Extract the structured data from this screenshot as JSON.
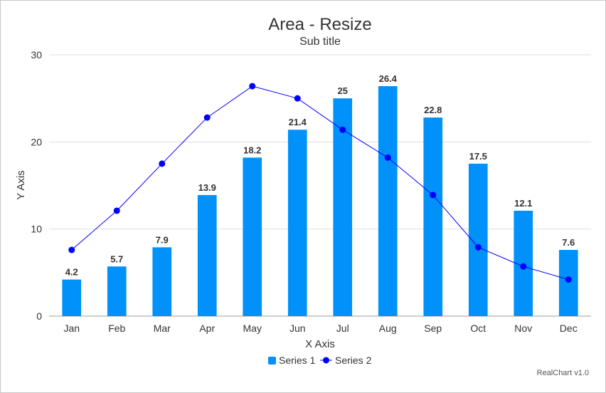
{
  "chart_data": {
    "type": "bar",
    "title": "Area - Resize",
    "subtitle": "Sub title",
    "xlabel": "X Axis",
    "ylabel": "Y Axis",
    "categories": [
      "Jan",
      "Feb",
      "Mar",
      "Apr",
      "May",
      "Jun",
      "Jul",
      "Aug",
      "Sep",
      "Oct",
      "Nov",
      "Dec"
    ],
    "ylim": [
      0,
      30
    ],
    "yticks": [
      0,
      10,
      20,
      30
    ],
    "grid": true,
    "legend_position": "bottom",
    "series": [
      {
        "name": "Series 1",
        "type": "bar",
        "color": "#0091fa",
        "values": [
          4.2,
          5.7,
          7.9,
          13.9,
          18.2,
          21.4,
          25,
          26.4,
          22.8,
          17.5,
          12.1,
          7.6
        ],
        "data_labels": true
      },
      {
        "name": "Series 2",
        "type": "line",
        "color": "#0000ff",
        "values": [
          7.6,
          12.1,
          17.5,
          22.8,
          26.4,
          25,
          21.4,
          18.2,
          13.9,
          7.9,
          5.7,
          4.2
        ],
        "data_labels": false
      }
    ],
    "credit": "RealChart v1.0"
  }
}
